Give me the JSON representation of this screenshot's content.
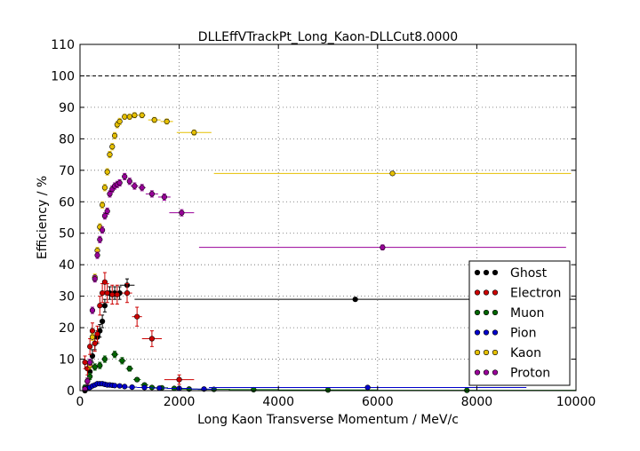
{
  "chart_data": {
    "type": "scatter",
    "title": "DLLEffVTrackPt_Long_Kaon-DLLCut8.0000",
    "xlabel": "Long Kaon Transverse Momentum / MeV/c",
    "ylabel": "Efficiency / %",
    "xlim": [
      0,
      10000
    ],
    "ylim": [
      0,
      110
    ],
    "xticks": [
      0,
      2000,
      4000,
      6000,
      8000,
      10000
    ],
    "yticks": [
      0,
      10,
      20,
      30,
      40,
      50,
      60,
      70,
      80,
      90,
      100,
      110
    ],
    "xtick_labels": [
      "0",
      "2000",
      "4000",
      "6000",
      "8000",
      "10000"
    ],
    "ytick_labels": [
      "0",
      "10",
      "20",
      "30",
      "40",
      "50",
      "60",
      "70",
      "80",
      "90",
      "100",
      "110"
    ],
    "grid": true,
    "reference_line_y": 100,
    "legend_position": "lower-right",
    "series": [
      {
        "name": "Ghost",
        "color": "#000000",
        "x": [
          100,
          150,
          200,
          250,
          300,
          350,
          400,
          450,
          500,
          600,
          700,
          800,
          950,
          5550
        ],
        "y": [
          0,
          1,
          6,
          11,
          15,
          17,
          19,
          22,
          27,
          31,
          31,
          31,
          33.5,
          29
        ],
        "xerr": [
          50,
          25,
          25,
          25,
          25,
          25,
          25,
          25,
          25,
          50,
          50,
          50,
          150,
          4450
        ],
        "yerr": [
          0,
          1,
          2,
          2,
          2,
          2,
          2,
          2,
          2,
          2,
          2,
          2,
          2,
          0.5
        ]
      },
      {
        "name": "Electron",
        "color": "#cc0000",
        "x": [
          100,
          150,
          200,
          250,
          300,
          350,
          400,
          450,
          500,
          550,
          650,
          750,
          950,
          1150,
          1450,
          2000
        ],
        "y": [
          9,
          7,
          14,
          19,
          15,
          18,
          27,
          31,
          34.5,
          31,
          30.5,
          30.5,
          31,
          23.5,
          16.5,
          3.5
        ],
        "xerr": [
          50,
          25,
          25,
          25,
          25,
          25,
          25,
          25,
          25,
          25,
          50,
          50,
          100,
          100,
          200,
          300
        ],
        "yerr": [
          2,
          2,
          2.5,
          2.5,
          2.5,
          2.5,
          3,
          3,
          3,
          3,
          3,
          3,
          3,
          3,
          2.5,
          1.5
        ]
      },
      {
        "name": "Muon",
        "color": "#006600",
        "x": [
          100,
          150,
          200,
          300,
          400,
          500,
          700,
          850,
          1000,
          1150,
          1300,
          1450,
          1650,
          1900,
          2200,
          2700,
          3500,
          5000,
          7800
        ],
        "y": [
          1,
          3,
          4.5,
          7.5,
          8,
          10,
          11.5,
          9.5,
          7,
          3.5,
          1.8,
          1,
          0.9,
          0.7,
          0.5,
          0.4,
          0.3,
          0.2,
          0.1
        ],
        "xerr": [
          50,
          25,
          50,
          50,
          50,
          50,
          75,
          75,
          75,
          75,
          75,
          75,
          125,
          125,
          175,
          325,
          500,
          1000,
          2200
        ],
        "yerr": [
          0.8,
          1,
          1,
          1,
          1,
          1,
          1,
          1,
          0.8,
          0.6,
          0.4,
          0.3,
          0.3,
          0.2,
          0.2,
          0.2,
          0.1,
          0.1,
          0.1
        ]
      },
      {
        "name": "Pion",
        "color": "#0000cc",
        "x": [
          100,
          150,
          200,
          250,
          300,
          350,
          400,
          450,
          500,
          550,
          600,
          650,
          700,
          800,
          900,
          1050,
          1300,
          1600,
          2000,
          2500,
          5800
        ],
        "y": [
          0.5,
          0.8,
          1,
          1.5,
          1.8,
          2.2,
          2.2,
          2.2,
          2,
          1.8,
          1.8,
          1.7,
          1.6,
          1.5,
          1.3,
          1.1,
          1,
          0.8,
          0.7,
          0.5,
          1
        ],
        "xerr": [
          50,
          25,
          25,
          25,
          25,
          25,
          25,
          25,
          25,
          25,
          25,
          25,
          50,
          50,
          50,
          100,
          150,
          150,
          250,
          250,
          3200
        ],
        "yerr": [
          0.2,
          0.2,
          0.2,
          0.2,
          0.2,
          0.2,
          0.2,
          0.2,
          0.2,
          0.2,
          0.2,
          0.2,
          0.2,
          0.2,
          0.2,
          0.2,
          0.1,
          0.1,
          0.1,
          0.1,
          0.2
        ]
      },
      {
        "name": "Kaon",
        "color": "#e6c000",
        "x": [
          100,
          150,
          200,
          250,
          300,
          350,
          400,
          450,
          500,
          550,
          600,
          650,
          700,
          750,
          800,
          900,
          1000,
          1100,
          1250,
          1500,
          1750,
          2300,
          6300
        ],
        "y": [
          0.5,
          3,
          8,
          17,
          36,
          44.5,
          52,
          59,
          64.5,
          69.5,
          75,
          77.5,
          81,
          84.5,
          85.5,
          87,
          87,
          87.5,
          87.5,
          86,
          85.5,
          82,
          69
        ],
        "xerr": [
          50,
          25,
          25,
          25,
          25,
          25,
          25,
          25,
          25,
          25,
          25,
          25,
          25,
          25,
          50,
          50,
          50,
          75,
          75,
          125,
          125,
          350,
          3600
        ],
        "yerr": [
          0.5,
          1,
          1,
          1,
          1,
          1,
          1,
          1,
          1,
          1,
          1,
          1,
          1,
          1,
          1,
          0.8,
          0.8,
          0.8,
          0.8,
          0.8,
          0.8,
          0.8,
          0.5
        ]
      },
      {
        "name": "Proton",
        "color": "#990099",
        "x": [
          100,
          150,
          200,
          250,
          300,
          350,
          400,
          450,
          500,
          550,
          600,
          650,
          700,
          750,
          800,
          900,
          1000,
          1100,
          1250,
          1450,
          1700,
          2050,
          6100
        ],
        "y": [
          0.5,
          3,
          9,
          25.5,
          35.5,
          43,
          48,
          51,
          55.5,
          57,
          62.5,
          64,
          65,
          65.5,
          66,
          68,
          66.5,
          65,
          64.5,
          62.5,
          61.5,
          56.5,
          45.5
        ],
        "xerr": [
          50,
          25,
          25,
          25,
          25,
          25,
          25,
          25,
          25,
          25,
          25,
          25,
          25,
          25,
          50,
          50,
          50,
          75,
          75,
          125,
          125,
          250,
          3700
        ],
        "yerr": [
          0.5,
          1,
          1,
          1,
          1,
          1,
          1,
          1,
          1,
          1,
          1,
          1,
          1,
          1,
          1,
          1,
          1,
          1,
          1,
          1,
          1,
          1,
          0.8
        ]
      }
    ]
  }
}
